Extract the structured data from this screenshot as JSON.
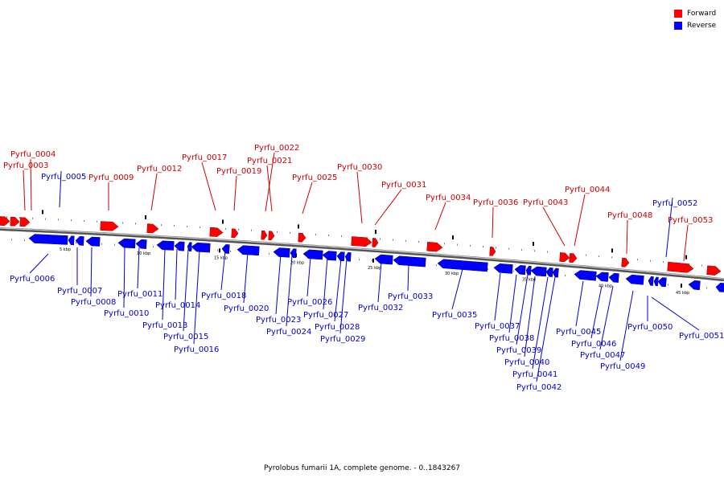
{
  "legend": {
    "forward": {
      "label": "Forward",
      "color": "#ff0000"
    },
    "reverse": {
      "label": "Reverse",
      "color": "#0000ff"
    }
  },
  "caption": "Pyrolobus fumarii 1A, complete genome. - 0..1843267",
  "axis_ticks": [
    "5 kbp",
    "10 kbp",
    "15 kbp",
    "20 kbp",
    "25 kbp",
    "30 kbp",
    "35 kbp",
    "40 kbp",
    "45 kbp"
  ],
  "genes": {
    "forward": [
      "Pyrfu_0003",
      "Pyrfu_0004",
      "Pyrfu_0009",
      "Pyrfu_0012",
      "Pyrfu_0017",
      "Pyrfu_0019",
      "Pyrfu_0021",
      "Pyrfu_0022",
      "Pyrfu_0025",
      "Pyrfu_0030",
      "Pyrfu_0031",
      "Pyrfu_0034",
      "Pyrfu_0036",
      "Pyrfu_0043",
      "Pyrfu_0044",
      "Pyrfu_0048",
      "Pyrfu_0053"
    ],
    "reverse": [
      "Pyrfu_0005",
      "Pyrfu_0006",
      "Pyrfu_0007",
      "Pyrfu_0008",
      "Pyrfu_0010",
      "Pyrfu_0011",
      "Pyrfu_0013",
      "Pyrfu_0014",
      "Pyrfu_0015",
      "Pyrfu_0016",
      "Pyrfu_0018",
      "Pyrfu_0020",
      "Pyrfu_0023",
      "Pyrfu_0024",
      "Pyrfu_0026",
      "Pyrfu_0027",
      "Pyrfu_0028",
      "Pyrfu_0029",
      "Pyrfu_0032",
      "Pyrfu_0033",
      "Pyrfu_0035",
      "Pyrfu_0037",
      "Pyrfu_0038",
      "Pyrfu_0039",
      "Pyrfu_0040",
      "Pyrfu_0041",
      "Pyrfu_0042",
      "Pyrfu_0045",
      "Pyrfu_0046",
      "Pyrfu_0047",
      "Pyrfu_0049",
      "Pyrfu_0050",
      "Pyrfu_0051",
      "Pyrfu_0052"
    ]
  }
}
